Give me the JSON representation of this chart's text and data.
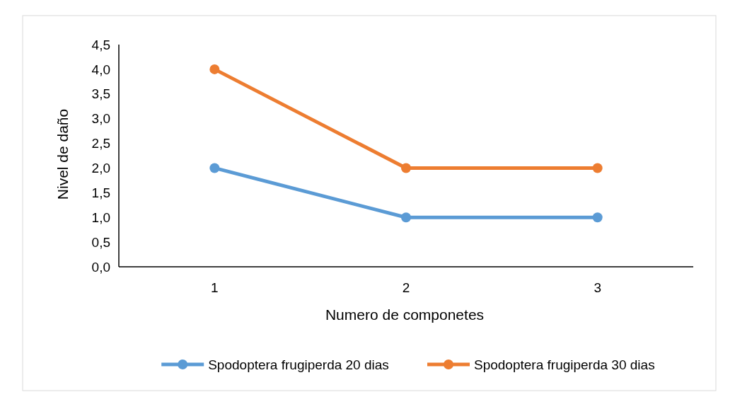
{
  "chart_data": {
    "type": "line",
    "xlabel": "Numero de componetes",
    "ylabel": "Nivel de daño",
    "categories": [
      "1",
      "2",
      "3"
    ],
    "series": [
      {
        "name": "Spodoptera frugiperda 20 dias",
        "color": "#5b9bd5",
        "values": [
          2,
          1,
          1
        ]
      },
      {
        "name": "Spodoptera frugiperda 30 dias",
        "color": "#ed7d31",
        "values": [
          4,
          2,
          2
        ]
      }
    ],
    "ylim": [
      0,
      4.5
    ],
    "yticks": [
      {
        "value": 0,
        "label": "0,0"
      },
      {
        "value": 0.5,
        "label": "0,5"
      },
      {
        "value": 1,
        "label": "1,0"
      },
      {
        "value": 1.5,
        "label": "1,5"
      },
      {
        "value": 2,
        "label": "2,0"
      },
      {
        "value": 2.5,
        "label": "2,5"
      },
      {
        "value": 3,
        "label": "3,0"
      },
      {
        "value": 3.5,
        "label": "3,5"
      },
      {
        "value": 4,
        "label": "4,0"
      },
      {
        "value": 4.5,
        "label": "4,5"
      }
    ],
    "grid": false,
    "legend": "bottom",
    "marker": "circle",
    "line_style": "solid"
  }
}
